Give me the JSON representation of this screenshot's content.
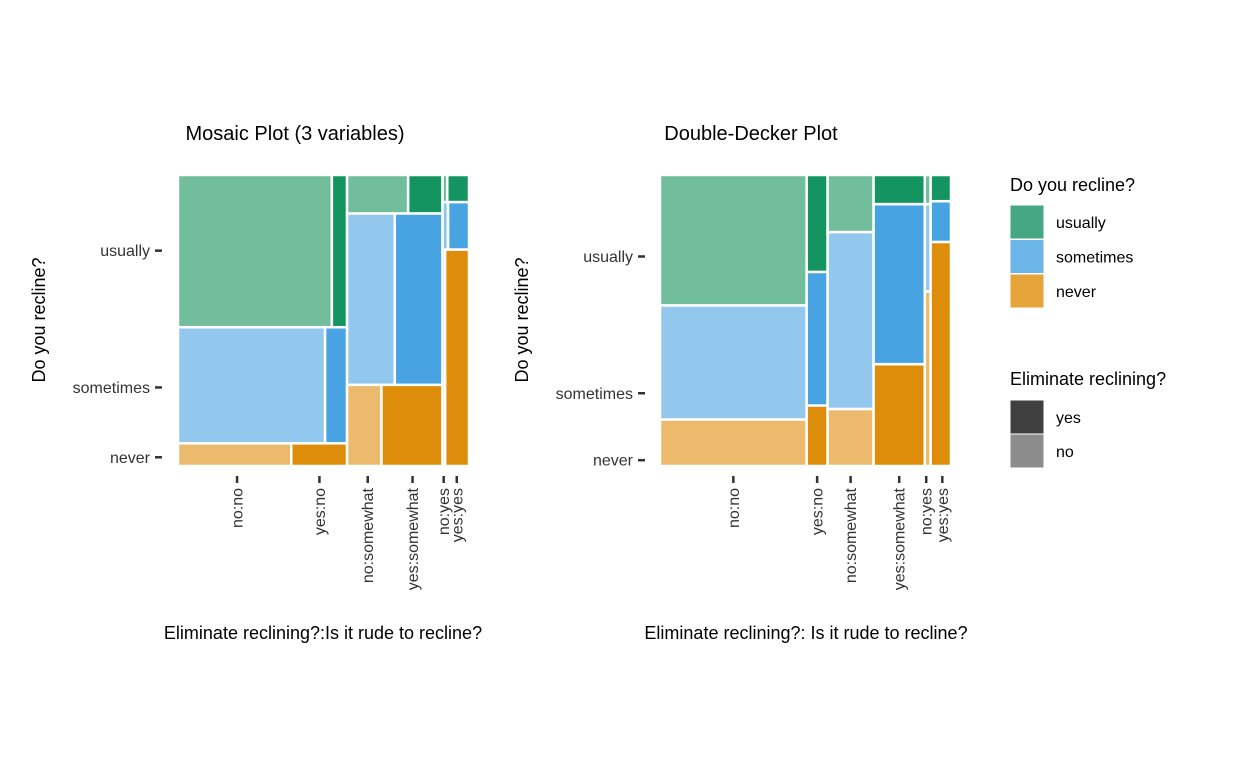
{
  "colors": {
    "usually": {
      "yes": "#139460",
      "no": "#71bd9c"
    },
    "sometimes": {
      "yes": "#48a3e2",
      "no": "#93c8ee"
    },
    "never": {
      "yes": "#dd8d0a",
      "no": "#ecba6c"
    },
    "legend_fill": {
      "usually": "#44a983",
      "sometimes": "#6cb5e9",
      "never": "#e6a43a"
    },
    "legend_eliminate": {
      "yes": "#3f3f3f",
      "no": "#8c8c8c"
    },
    "tick_mark": "#333333",
    "tile_border": "#ffffff"
  },
  "chart_data": [
    {
      "type": "mosaic",
      "title": "Mosaic Plot (3 variables)",
      "xlabel": "Eliminate reclining?:Is it rude to recline?",
      "ylabel": "Do you recline?",
      "y_ticks": [
        "usually",
        "sometimes",
        "never"
      ],
      "y_tick_values": [
        0.74,
        0.27,
        0.03
      ],
      "fill_var": "Do you recline?",
      "alpha_var": "Eliminate reclining?",
      "columns": [
        {
          "label": "no",
          "width": 0.581,
          "rows": [
            {
              "recline": "usually",
              "height": 0.523,
              "split": [
                {
                  "elim": "no",
                  "width": 0.91
                },
                {
                  "elim": "yes",
                  "width": 0.09
                }
              ]
            },
            {
              "recline": "sometimes",
              "height": 0.399,
              "split": [
                {
                  "elim": "no",
                  "width": 0.87
                },
                {
                  "elim": "yes",
                  "width": 0.13
                }
              ]
            },
            {
              "recline": "never",
              "height": 0.078,
              "split": [
                {
                  "elim": "no",
                  "width": 0.67
                },
                {
                  "elim": "yes",
                  "width": 0.33
                }
              ]
            }
          ]
        },
        {
          "label": "somewhat",
          "width": 0.328,
          "rows": [
            {
              "recline": "usually",
              "height": 0.132,
              "split": [
                {
                  "elim": "no",
                  "width": 0.64
                },
                {
                  "elim": "yes",
                  "width": 0.36
                }
              ]
            },
            {
              "recline": "sometimes",
              "height": 0.589,
              "split": [
                {
                  "elim": "no",
                  "width": 0.5
                },
                {
                  "elim": "yes",
                  "width": 0.5
                }
              ]
            },
            {
              "recline": "never",
              "height": 0.279,
              "split": [
                {
                  "elim": "no",
                  "width": 0.36
                },
                {
                  "elim": "yes",
                  "width": 0.64
                }
              ]
            }
          ]
        },
        {
          "label": "yes",
          "width": 0.091,
          "rows": [
            {
              "recline": "usually",
              "height": 0.093,
              "split": [
                {
                  "elim": "no",
                  "width": 0.18
                },
                {
                  "elim": "yes",
                  "width": 0.82
                }
              ]
            },
            {
              "recline": "sometimes",
              "height": 0.163,
              "split": [
                {
                  "elim": "no",
                  "width": 0.21
                },
                {
                  "elim": "yes",
                  "width": 0.79
                }
              ]
            },
            {
              "recline": "never",
              "height": 0.744,
              "split": [
                {
                  "elim": "no",
                  "width": 0.1
                },
                {
                  "elim": "yes",
                  "width": 0.9
                }
              ]
            }
          ]
        }
      ],
      "x_ticks": [
        {
          "label": "no:no",
          "pos": 0.203
        },
        {
          "label": "yes:no",
          "pos": 0.486
        },
        {
          "label": "no:somewhat",
          "pos": 0.652
        },
        {
          "label": "yes:somewhat",
          "pos": 0.806
        },
        {
          "label": "no:yes",
          "pos": 0.913
        },
        {
          "label": "yes:yes",
          "pos": 0.958
        }
      ]
    },
    {
      "type": "doubledecker",
      "title": "Double-Decker Plot",
      "xlabel": "Eliminate reclining?: Is it rude to recline?",
      "ylabel": "Do you recline?",
      "y_ticks": [
        "usually",
        "sometimes",
        "never"
      ],
      "y_tick_values": [
        0.72,
        0.25,
        0.02
      ],
      "columns": [
        {
          "rude": "no",
          "elim": "no",
          "width": 0.504,
          "segments": [
            {
              "recline": "usually",
              "height": 0.448
            },
            {
              "recline": "sometimes",
              "height": 0.392
            },
            {
              "recline": "never",
              "height": 0.16
            }
          ]
        },
        {
          "rude": "no",
          "elim": "yes",
          "width": 0.072,
          "segments": [
            {
              "recline": "usually",
              "height": 0.333
            },
            {
              "recline": "sometimes",
              "height": 0.459
            },
            {
              "recline": "never",
              "height": 0.208
            }
          ]
        },
        {
          "rude": "somewhat",
          "elim": "no",
          "width": 0.158,
          "segments": [
            {
              "recline": "usually",
              "height": 0.196
            },
            {
              "recline": "sometimes",
              "height": 0.608
            },
            {
              "recline": "never",
              "height": 0.196
            }
          ]
        },
        {
          "rude": "somewhat",
          "elim": "yes",
          "width": 0.176,
          "segments": [
            {
              "recline": "usually",
              "height": 0.1
            },
            {
              "recline": "sometimes",
              "height": 0.55
            },
            {
              "recline": "never",
              "height": 0.35
            }
          ]
        },
        {
          "rude": "yes",
          "elim": "no",
          "width": 0.02,
          "segments": [
            {
              "recline": "usually",
              "height": 0.1
            },
            {
              "recline": "sometimes",
              "height": 0.3
            },
            {
              "recline": "never",
              "height": 0.6
            }
          ]
        },
        {
          "rude": "yes",
          "elim": "yes",
          "width": 0.07,
          "segments": [
            {
              "recline": "usually",
              "height": 0.09
            },
            {
              "recline": "sometimes",
              "height": 0.14
            },
            {
              "recline": "never",
              "height": 0.77
            }
          ]
        }
      ],
      "x_ticks": [
        {
          "label": "no:no"
        },
        {
          "label": "yes:no"
        },
        {
          "label": "no:somewhat"
        },
        {
          "label": "yes:somewhat"
        },
        {
          "label": "no:yes"
        },
        {
          "label": "yes:yes"
        }
      ]
    }
  ],
  "legend": {
    "fill_title": "Do you recline?",
    "fill_items": [
      "usually",
      "sometimes",
      "never"
    ],
    "alpha_title": "Eliminate reclining?",
    "alpha_items": [
      "yes",
      "no"
    ]
  }
}
